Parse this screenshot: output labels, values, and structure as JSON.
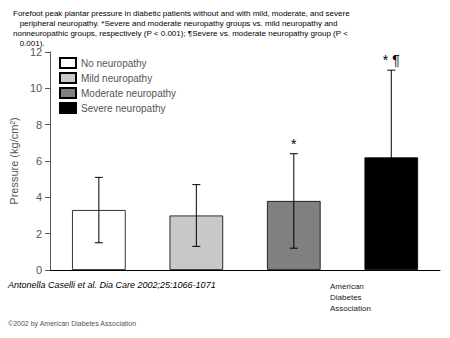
{
  "chart_data": {
    "type": "bar",
    "title": "Forefoot peak plantar pressure in diabetic patients without and with mild, moderate, and severe\n   peripheral neuropathy. *Severe and moderate neuropathy groups vs. mild neuropathy and\nnonneuropathic groups, respectively (P < 0.001); ¶Severe vs. moderate neuropathy group (P <\n   0.001).",
    "categories": [
      "No neuropathy",
      "Mild neuropathy",
      "Moderate neuropathy",
      "Severe neuropathy"
    ],
    "values": [
      3.3,
      3.0,
      3.8,
      6.2
    ],
    "errors": [
      1.8,
      1.7,
      2.6,
      4.8
    ],
    "colors": [
      "#ffffff",
      "#c8c8c8",
      "#808080",
      "#000000"
    ],
    "ylabel": "Pressure (kg/cm²)",
    "ylim": [
      0,
      12
    ],
    "yticks": [
      0,
      2,
      4,
      6,
      8,
      10,
      12
    ],
    "annotations": [
      {
        "index": 2,
        "text": "*"
      },
      {
        "index": 3,
        "text": "* ¶"
      }
    ],
    "legend": "upper left",
    "grid": false,
    "tick_labels": "y",
    "citation": "Antonella Caselli et al. Dia Care 2002;25:1066-1071",
    "copyright": "©2002 by American Diabetes Association",
    "logo": [
      "American",
      "Diabetes",
      "Association"
    ]
  }
}
